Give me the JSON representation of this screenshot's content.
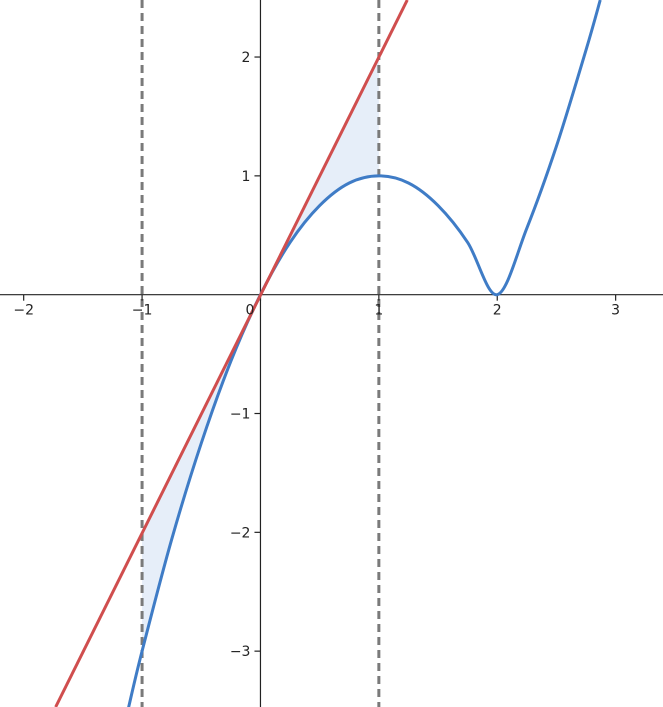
{
  "chart_data": {
    "type": "line",
    "xlim": [
      -2.2,
      3.4
    ],
    "ylim": [
      -3.47,
      2.48
    ],
    "grid": false,
    "x_ticks": [
      {
        "value": -2,
        "label": "−2"
      },
      {
        "value": -1,
        "label": "−1"
      },
      {
        "value": 0,
        "label": "0"
      },
      {
        "value": 1,
        "label": "1"
      },
      {
        "value": 2,
        "label": "2"
      },
      {
        "value": 3,
        "label": "3"
      }
    ],
    "y_ticks": [
      {
        "value": -3,
        "label": "−3"
      },
      {
        "value": -2,
        "label": "−2"
      },
      {
        "value": -1,
        "label": "−1"
      },
      {
        "value": 1,
        "label": "1"
      },
      {
        "value": 2,
        "label": "2"
      }
    ],
    "series": [
      {
        "color": "#3f7cc6",
        "x": [
          -1.12,
          -1.0,
          -0.75,
          -0.5,
          -0.25,
          0.0,
          0.25,
          0.5,
          0.75,
          1.0,
          1.25,
          1.5,
          1.75,
          2.0,
          2.25,
          2.5,
          2.75,
          2.87
        ],
        "y": [
          -3.5,
          -3.0,
          -2.06,
          -1.25,
          -0.56,
          0.0,
          0.44,
          0.75,
          0.94,
          1.0,
          0.94,
          0.75,
          0.44,
          0.0,
          0.56,
          1.25,
          2.06,
          2.48
        ]
      },
      {
        "color": "#d04e4e",
        "x": [
          -1.73,
          1.24
        ],
        "y": [
          -3.47,
          2.48
        ]
      }
    ],
    "vertical_lines": [
      {
        "x": -1,
        "color": "#7a7a7a",
        "style": "dashed"
      },
      {
        "x": 1,
        "color": "#7a7a7a",
        "style": "dashed"
      }
    ],
    "shaded_regions": [
      {
        "color": "#dbe7f6",
        "x_from": -1,
        "x_to": 0
      },
      {
        "color": "#dbe7f6",
        "x_from": 0,
        "x_to": 1
      }
    ]
  }
}
